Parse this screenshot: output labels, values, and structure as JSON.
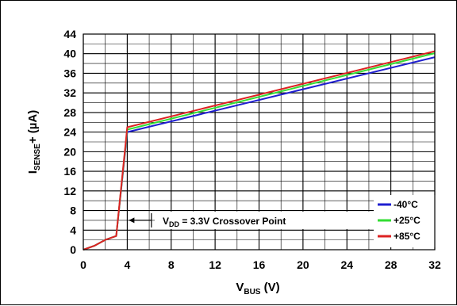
{
  "chart_data": {
    "type": "line",
    "title": "",
    "xlabel": {
      "main": "V",
      "sub": "BUS",
      "tail": " (V)"
    },
    "ylabel": {
      "main": "I",
      "sub": "SENSE",
      "tail": "+ (µA)"
    },
    "xlim": [
      0,
      32
    ],
    "ylim": [
      0,
      44
    ],
    "x_ticks": [
      0,
      4,
      8,
      12,
      16,
      20,
      24,
      28,
      32
    ],
    "y_ticks": [
      0,
      4,
      8,
      12,
      16,
      20,
      24,
      28,
      32,
      36,
      40,
      44
    ],
    "x_minor_step": 2,
    "y_minor_step": 2,
    "grid": true,
    "legend_position": "bottom-right",
    "series": [
      {
        "name": "-40°C",
        "color": "#1f1fd0",
        "points": [
          [
            0,
            0
          ],
          [
            1,
            0.8
          ],
          [
            2,
            2.0
          ],
          [
            3,
            2.8
          ],
          [
            4,
            24.0
          ],
          [
            32,
            39.3
          ]
        ]
      },
      {
        "name": "+25°C",
        "color": "#33dd33",
        "points": [
          [
            0,
            0
          ],
          [
            1,
            0.8
          ],
          [
            2,
            2.0
          ],
          [
            3,
            2.8
          ],
          [
            4,
            24.5
          ],
          [
            32,
            40.1
          ]
        ]
      },
      {
        "name": "+85°C",
        "color": "#dd2222",
        "points": [
          [
            0,
            0
          ],
          [
            1,
            0.8
          ],
          [
            2,
            2.0
          ],
          [
            3,
            2.8
          ],
          [
            4,
            25.0
          ],
          [
            32,
            40.5
          ]
        ]
      }
    ],
    "annotation": {
      "main": "V",
      "sub": "DD",
      "tail": " = 3.3V Crossover Point",
      "x": 4,
      "y": 6
    }
  }
}
